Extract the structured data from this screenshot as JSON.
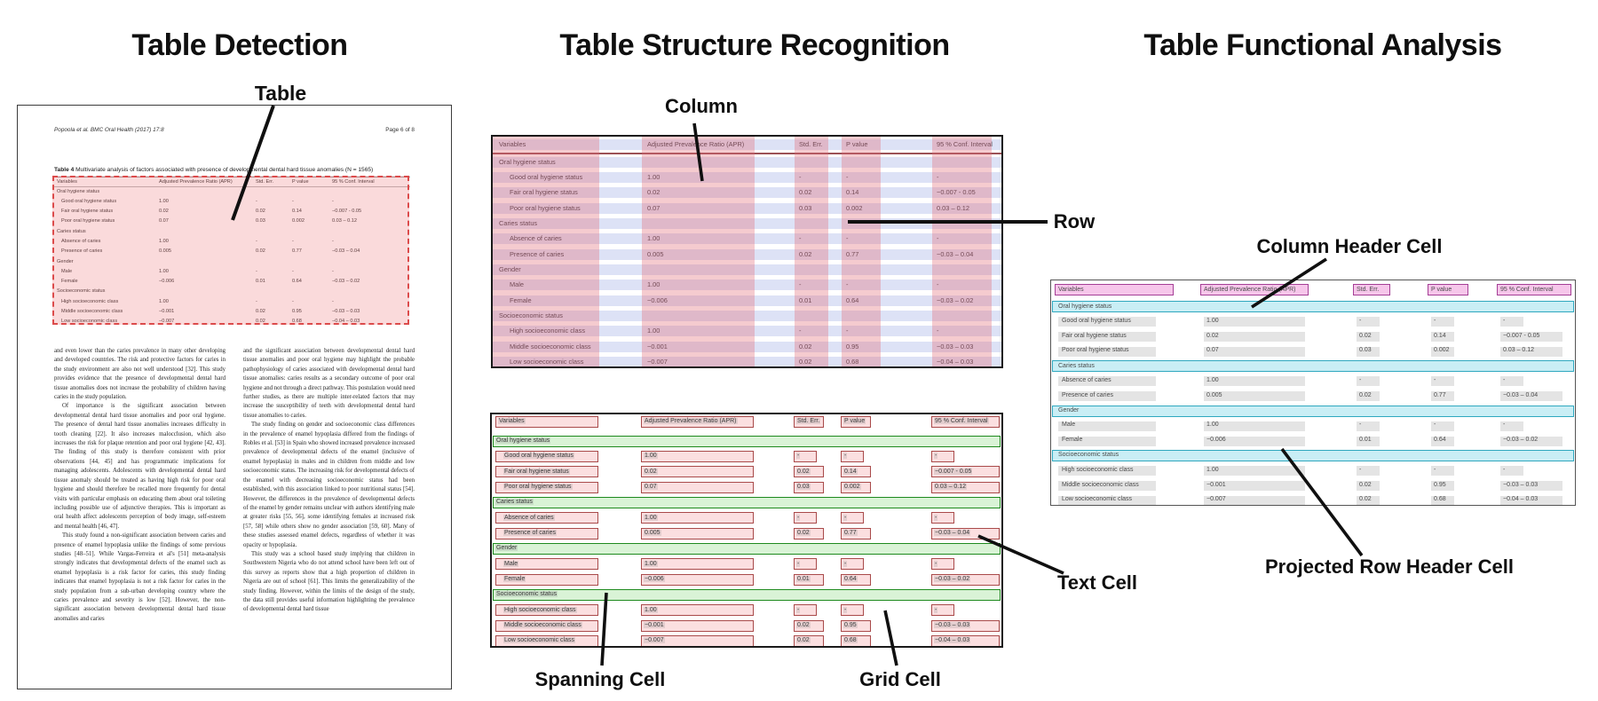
{
  "titles": {
    "detection": "Table Detection",
    "structure": "Table Structure Recognition",
    "functional": "Table Functional Analysis"
  },
  "annotations": {
    "table": "Table",
    "column": "Column",
    "row": "Row",
    "spanning_cell": "Spanning Cell",
    "grid_cell": "Grid Cell",
    "text_cell": "Text Cell",
    "column_header_cell": "Column Header Cell",
    "projected_row_header_cell": "Projected Row Header Cell"
  },
  "document": {
    "header_left": "Popoola et al. BMC Oral Health  (2017) 17:8",
    "header_right": "Page 6 of 8",
    "table_caption_label": "Table 4",
    "table_caption_text": " Multivariate analysis of factors associated with presence of developmental dental hard tissue anomalies (N = 1565)",
    "body_col1": [
      "and even lower than the caries prevalence in many other developing and developed countries. The risk and protective factors for caries in the study environment are also not well understood [32]. This study provides evidence that the presence of developmental dental hard tissue anomalies does not increase the probability of children having caries in the study population.",
      "Of importance is the significant association between developmental dental hard tissue anomalies and poor oral hygiene. The presence of dental hard tissue anomalies increases difficulty in tooth cleaning [22]. It also increases malocclusion, which also increases the risk for plaque retention and poor oral hygiene [42, 43]. The finding of this study is therefore consistent with prior observations [44, 45] and has programmatic implications for managing adolescents. Adolescents with developmental dental hard tissue anomaly should be treated as having high risk for poor oral hygiene and should therefore be recalled more frequently for dental visits with particular emphasis on educating them about oral toileting including possible use of adjunctive therapies. This is important as oral health affect adolescents perception of body image, self-esteem and mental health [46, 47].",
      "This study found a non-significant association between caries and presence of enamel hypoplasia unlike the findings of some previous studies [48–51]. While Vargas-Ferreira et al's [51] meta-analysis strongly indicates that developmental defects of the enamel such as enamel hypoplasia is a risk factor for caries, this study finding indicates that enamel hypoplasia is not a risk factor for caries in the study population from a sub-urban developing country where the caries prevalence and severity is low [52]. However, the non-significant association between developmental dental hard tissue anomalies and caries"
    ],
    "body_col2": [
      "and the significant association between developmental dental hard tissue anomalies and poor oral hygiene may highlight the probable pathophysiology of caries associated with developmental dental hard tissue anomalies: caries results as a secondary outcome of poor oral hygiene and not through a direct pathway. This postulation would need further studies, as there are multiple inter-related factors that may increase the susceptibility of teeth with developmental dental hard tissue anomalies to caries.",
      "The study finding on gender and socioeconomic class differences in the prevalence of enamel hypoplasia differed from the findings of Robles et al. [53] in Spain who showed increased prevalence increased prevalence of developmental defects of the enamel (inclusive of enamel hypoplasia) in males and in children from middle and low socioeconomic status. The increasing risk for developmental defects of the enamel with decreasing socioeconomic status had been established, with this association linked to poor nutritional status [54]. However, the differences in the prevalence of developmental defects of the enamel by gender remains unclear with authors identifying male at greater risks [55, 56], some identifying females at increased risk [57, 58] while others show no gender association [59, 60]. Many of these studies assessed enamel defects, regardless of whether it was opacity or hypoplasia.",
      "This study was a school based study implying that children in Southwestern Nigeria who do not attend school have been left out of this survey as reports show that a high proportion of children in Nigeria are out of school [61]. This limits the generalizability of the study finding. However, within the limits of the design of the study, the data still provides useful information highlighting the prevalence of developmental dental hard tissue"
    ]
  },
  "table_data": {
    "headers": [
      "Variables",
      "Adjusted Prevalence Ratio (APR)",
      "Std. Err.",
      "P value",
      "95 % Conf. Interval"
    ],
    "rows": [
      {
        "label": "Oral hygiene status",
        "section": true
      },
      {
        "label": "Good oral hygiene status",
        "values": [
          "1.00",
          "-",
          "-",
          "-"
        ]
      },
      {
        "label": "Fair oral hygiene status",
        "values": [
          "0.02",
          "0.02",
          "0.14",
          "−0.007 - 0.05"
        ]
      },
      {
        "label": "Poor oral hygiene status",
        "values": [
          "0.07",
          "0.03",
          "0.002",
          "0.03 – 0.12"
        ]
      },
      {
        "label": "Caries status",
        "section": true
      },
      {
        "label": "Absence of caries",
        "values": [
          "1.00",
          "-",
          "-",
          "-"
        ]
      },
      {
        "label": "Presence of caries",
        "values": [
          "0.005",
          "0.02",
          "0.77",
          "−0.03 – 0.04"
        ]
      },
      {
        "label": "Gender",
        "section": true
      },
      {
        "label": "Male",
        "values": [
          "1.00",
          "-",
          "-",
          "-"
        ]
      },
      {
        "label": "Female",
        "values": [
          "−0.006",
          "0.01",
          "0.64",
          "−0.03 – 0.02"
        ]
      },
      {
        "label": "Socioeconomic status",
        "section": true
      },
      {
        "label": "High socioeconomic class",
        "values": [
          "1.00",
          "-",
          "-",
          "-"
        ]
      },
      {
        "label": "Middle socioeconomic class",
        "values": [
          "−0.001",
          "0.02",
          "0.95",
          "−0.03 – 0.03"
        ]
      },
      {
        "label": "Low socioeconomic class",
        "values": [
          "−0.007",
          "0.02",
          "0.68",
          "−0.04 – 0.03"
        ]
      }
    ]
  },
  "colors": {
    "detection_overlay": "#e8555a",
    "detection_border": "#dc4b4b",
    "column_band": "rgba(225,106,118,0.35)",
    "row_band": "#dde2f6",
    "header_rule": "#9c5156",
    "spanning_fill": "#d9f3d6",
    "spanning_border": "#1e8a1e",
    "grid_cell_fill": "#fbdfe0",
    "grid_cell_border": "#a94a4a",
    "column_header_fill": "#f6c6ea",
    "column_header_border": "#a53f96",
    "projected_fill": "#c9eef5",
    "projected_border": "#2fa8bf",
    "text_cell_bg": "#e4e4e4"
  }
}
